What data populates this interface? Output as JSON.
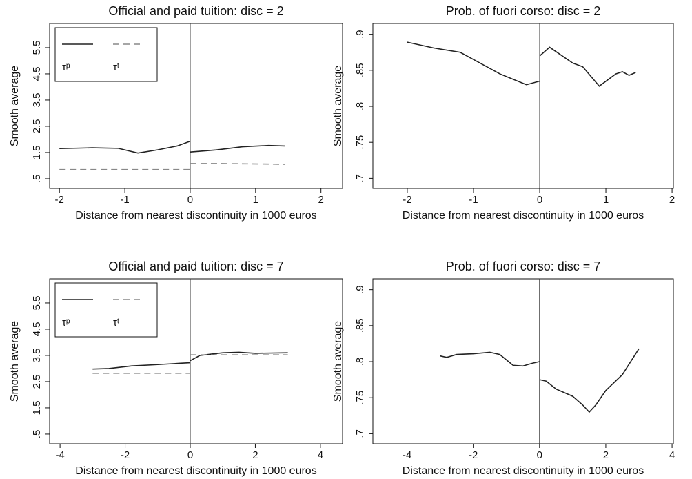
{
  "chart_data": [
    {
      "type": "line",
      "title": "Official and paid tuition: disc = 2",
      "xlabel": "Distance from nearest discontinuity in 1000 euros",
      "ylabel": "Smooth average",
      "x": [
        -2,
        -1.5,
        -1.1,
        -0.8,
        -0.5,
        -0.2,
        0,
        0,
        0,
        0.4,
        0.8,
        1.2,
        1.45
      ],
      "series": [
        {
          "name": "τᵖ",
          "color": "#222222",
          "dashed": false,
          "values": [
            1.65,
            1.68,
            1.66,
            1.48,
            1.6,
            1.75,
            1.93,
            null,
            1.52,
            1.6,
            1.72,
            1.77,
            1.75
          ]
        },
        {
          "name": "τᵗ",
          "color": "#888888",
          "dashed": true,
          "values": [
            0.85,
            0.85,
            0.85,
            0.85,
            0.85,
            0.85,
            0.85,
            null,
            1.08,
            1.08,
            1.07,
            1.06,
            1.05
          ]
        }
      ],
      "xlim": [
        -2.15,
        2.33
      ],
      "xticks": [
        -2,
        -1,
        0,
        1,
        2
      ],
      "ylim": [
        0.13,
        6.42
      ],
      "yticks": [
        {
          "value": 0.5,
          "label": ".5"
        },
        1.5,
        2.5,
        3.5,
        4.5,
        5.5
      ],
      "vline": 0,
      "legend": "upper left"
    },
    {
      "type": "line",
      "title": "Prob. of fuori corso: disc = 2",
      "xlabel": "Distance from nearest discontinuity in 1000 euros",
      "ylabel": "Smooth average",
      "x": [
        -2,
        -1.6,
        -1.2,
        -1,
        -0.6,
        -0.2,
        0,
        0,
        0,
        0.15,
        0.5,
        0.65,
        0.9,
        1.15,
        1.25,
        1.35,
        1.45
      ],
      "series": [
        {
          "color": "#222222",
          "dashed": false,
          "values": [
            0.889,
            0.881,
            0.875,
            0.865,
            0.845,
            0.83,
            0.835,
            null,
            0.87,
            0.882,
            0.86,
            0.855,
            0.828,
            0.845,
            0.848,
            0.843,
            0.847
          ]
        }
      ],
      "xlim": [
        -2.52,
        2.02
      ],
      "xticks": [
        -2,
        -1,
        0,
        1,
        2
      ],
      "ylim": [
        0.686,
        0.915
      ],
      "yticks": [
        {
          "value": 0.7,
          "label": ".7"
        },
        {
          "value": 0.75,
          "label": ".75"
        },
        {
          "value": 0.8,
          "label": ".8"
        },
        {
          "value": 0.85,
          "label": ".85"
        },
        {
          "value": 0.9,
          "label": ".9"
        }
      ],
      "vline": 0
    },
    {
      "type": "line",
      "title": "Official and paid tuition: disc = 7",
      "xlabel": "Distance from nearest discontinuity in 1000 euros",
      "ylabel": "Smooth average",
      "x": [
        -3,
        -2.5,
        -1.8,
        -1,
        -0.3,
        0,
        0,
        0,
        0.3,
        1,
        1.5,
        2,
        3
      ],
      "series": [
        {
          "name": "τᵖ",
          "color": "#222222",
          "dashed": false,
          "values": [
            2.98,
            3.0,
            3.1,
            3.15,
            3.2,
            3.22,
            null,
            3.3,
            3.5,
            3.6,
            3.62,
            3.58,
            3.6
          ]
        },
        {
          "name": "τᵗ",
          "color": "#888888",
          "dashed": true,
          "values": [
            2.82,
            2.82,
            2.82,
            2.82,
            2.82,
            2.82,
            null,
            3.52,
            3.52,
            3.52,
            3.52,
            3.52,
            3.52
          ]
        }
      ],
      "xlim": [
        -4.32,
        4.68
      ],
      "xticks": [
        -4,
        -2,
        0,
        2,
        4
      ],
      "ylim": [
        0.13,
        6.42
      ],
      "yticks": [
        {
          "value": 0.5,
          "label": ".5"
        },
        1.5,
        2.5,
        3.5,
        4.5,
        5.5
      ],
      "vline": 0,
      "legend": "upper left"
    },
    {
      "type": "line",
      "title": "Prob. of fuori corso: disc = 7",
      "xlabel": "Distance from nearest discontinuity in 1000 euros",
      "ylabel": "Smooth average",
      "x": [
        -3,
        -2.8,
        -2.5,
        -2,
        -1.5,
        -1.2,
        -0.8,
        -0.5,
        -0.2,
        0,
        0,
        0,
        0.2,
        0.5,
        1,
        1.3,
        1.5,
        1.7,
        2,
        2.5,
        3
      ],
      "series": [
        {
          "color": "#222222",
          "dashed": false,
          "values": [
            0.808,
            0.806,
            0.81,
            0.811,
            0.813,
            0.81,
            0.795,
            0.794,
            0.798,
            0.8,
            null,
            0.775,
            0.773,
            0.762,
            0.752,
            0.74,
            0.73,
            0.74,
            0.76,
            0.782,
            0.818
          ]
        }
      ],
      "xlim": [
        -5.03,
        4.04
      ],
      "xticks": [
        -4,
        -2,
        0,
        2,
        4
      ],
      "ylim": [
        0.686,
        0.915
      ],
      "yticks": [
        {
          "value": 0.7,
          "label": ".7"
        },
        {
          "value": 0.75,
          "label": ".75"
        },
        {
          "value": 0.8,
          "label": ".8"
        },
        {
          "value": 0.85,
          "label": ".85"
        },
        {
          "value": 0.9,
          "label": ".9"
        }
      ],
      "vline": 0
    }
  ]
}
